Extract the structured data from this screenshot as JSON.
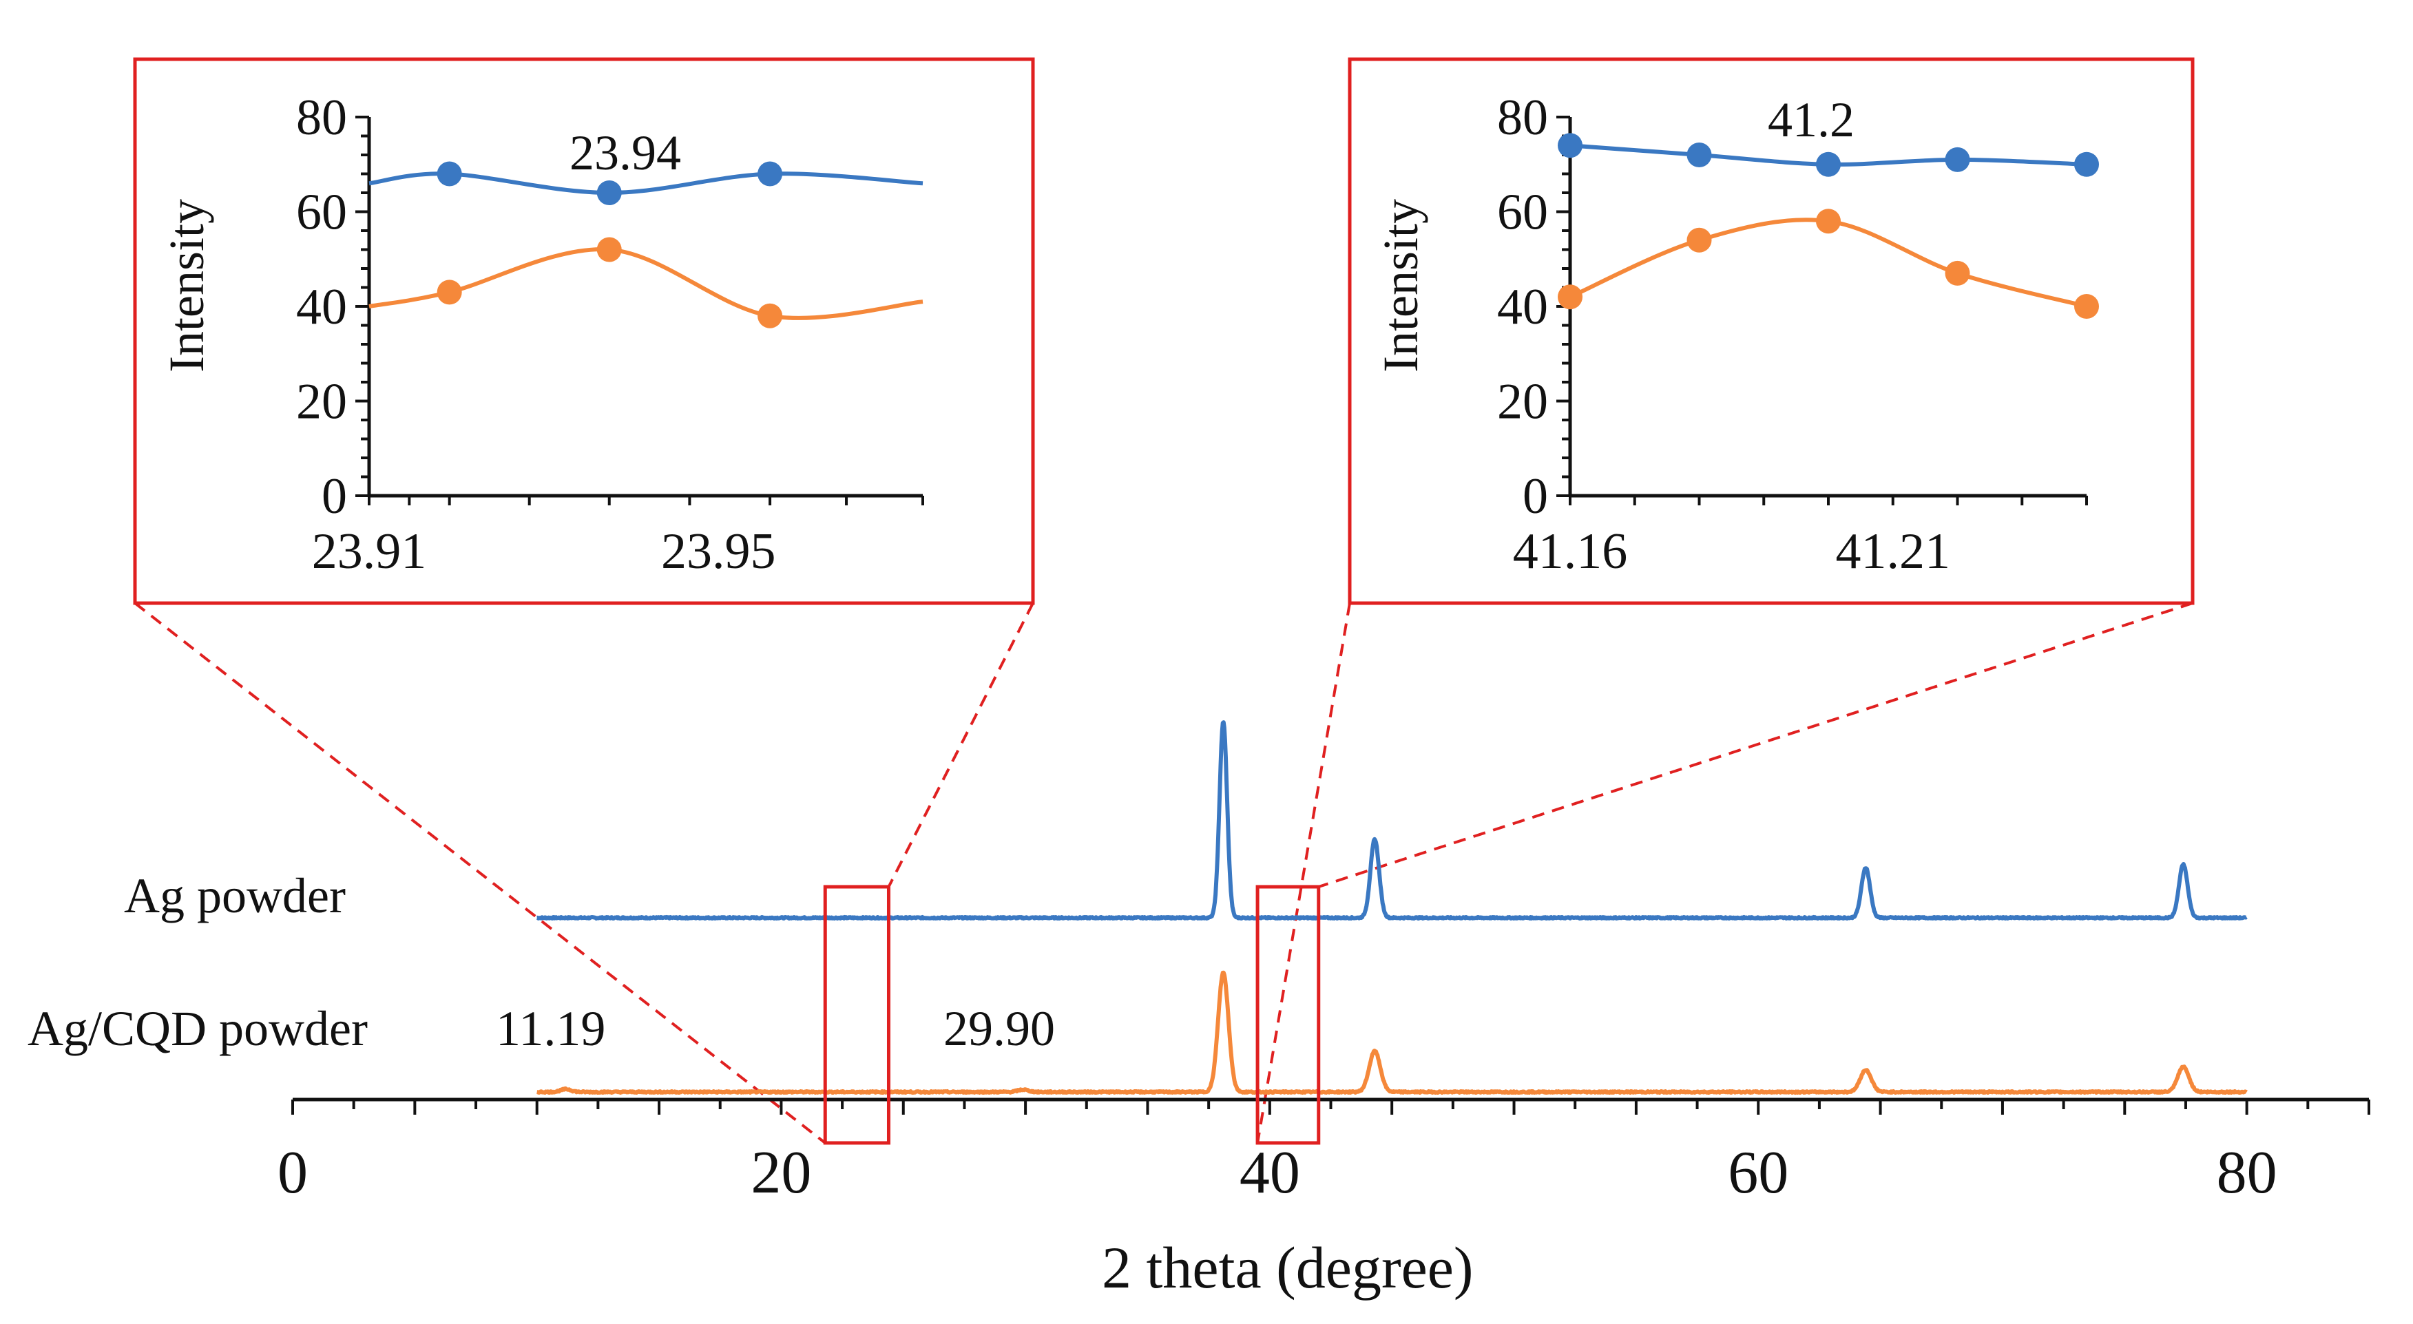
{
  "chart_data": [
    {
      "type": "line",
      "role": "main",
      "xlabel": "2 theta (degree)",
      "ylabel": "",
      "xlim": [
        0,
        85
      ],
      "xticks": [
        0,
        20,
        40,
        60,
        80
      ],
      "xtick_labels": [
        "0",
        "20",
        "40",
        "60",
        "80"
      ],
      "grid": false,
      "legend": "none",
      "series": [
        {
          "name": "Ag powder",
          "color": "#3a78c2",
          "baseline": 1,
          "x_range": [
            10,
            80
          ],
          "peaks": [
            {
              "x": 38.1,
              "height": 12.5,
              "width": 0.22
            },
            {
              "x": 44.3,
              "height": 5.0,
              "width": 0.25
            },
            {
              "x": 64.4,
              "height": 3.2,
              "width": 0.25
            },
            {
              "x": 77.4,
              "height": 3.4,
              "width": 0.25
            }
          ]
        },
        {
          "name": "Ag/CQD powder",
          "color": "#f5883a",
          "baseline": 0,
          "x_range": [
            10,
            80
          ],
          "peaks": [
            {
              "x": 11.19,
              "height": 0.18,
              "width": 0.3
            },
            {
              "x": 29.9,
              "height": 0.15,
              "width": 0.3
            },
            {
              "x": 38.1,
              "height": 7.6,
              "width": 0.3
            },
            {
              "x": 44.3,
              "height": 2.6,
              "width": 0.32
            },
            {
              "x": 64.4,
              "height": 1.4,
              "width": 0.32
            },
            {
              "x": 77.4,
              "height": 1.6,
              "width": 0.32
            }
          ]
        }
      ],
      "annotations": [
        "11.19",
        "29.90"
      ],
      "zoom_windows": [
        [
          21.8,
          24.4
        ],
        [
          39.5,
          42.0
        ]
      ]
    },
    {
      "type": "line",
      "role": "inset-left",
      "ylabel": "Intensity",
      "xlim": [
        23.91,
        23.9734
      ],
      "ylim": [
        0,
        80
      ],
      "yticks": [
        0,
        20,
        40,
        60,
        80
      ],
      "xticks": [
        23.91,
        23.95
      ],
      "xtick_labels": [
        "23.91",
        "23.95"
      ],
      "annotation": "23.94",
      "series": [
        {
          "name": "Ag powder",
          "color": "#3a78c2",
          "x": [
            23.91,
            23.9192,
            23.9375,
            23.9559,
            23.9734
          ],
          "y": [
            66,
            68,
            64,
            68,
            66
          ]
        },
        {
          "name": "Ag/CQD powder",
          "color": "#f5883a",
          "x": [
            23.91,
            23.9192,
            23.9375,
            23.9559,
            23.9734
          ],
          "y": [
            40,
            43,
            52,
            38,
            41
          ]
        }
      ]
    },
    {
      "type": "line",
      "role": "inset-right",
      "ylabel": "Intensity",
      "xlim": [
        41.16,
        41.24
      ],
      "ylim": [
        0,
        80
      ],
      "yticks": [
        0,
        20,
        40,
        60,
        80
      ],
      "xticks": [
        41.16,
        41.21
      ],
      "xtick_labels": [
        "41.16",
        "41.21"
      ],
      "annotation": "41.2",
      "series": [
        {
          "name": "Ag powder",
          "color": "#3a78c2",
          "x": [
            41.16,
            41.18,
            41.2,
            41.22,
            41.24
          ],
          "y": [
            74,
            72,
            70,
            71,
            70
          ]
        },
        {
          "name": "Ag/CQD powder",
          "color": "#f5883a",
          "x": [
            41.16,
            41.18,
            41.2,
            41.22,
            41.24
          ],
          "y": [
            42,
            54,
            58,
            47,
            40
          ]
        }
      ]
    }
  ]
}
